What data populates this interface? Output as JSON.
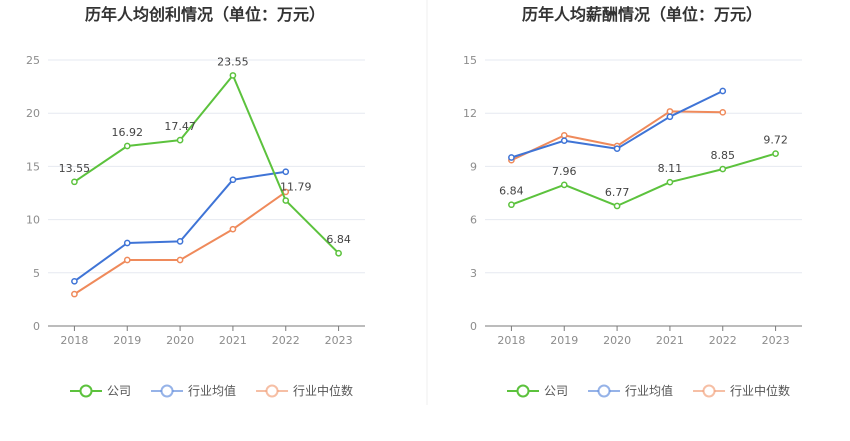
{
  "chart_data": [
    {
      "type": "line",
      "title": "历年人均创利情况（单位：万元）",
      "categories": [
        "2018",
        "2019",
        "2020",
        "2021",
        "2022",
        "2023"
      ],
      "ylim": [
        0,
        25
      ],
      "yticks": [
        0,
        5,
        10,
        15,
        20,
        25
      ],
      "grid": true,
      "legend_position": "bottom",
      "series": [
        {
          "name": "公司",
          "color": "#5cc23d",
          "values": [
            13.55,
            16.92,
            17.47,
            23.55,
            11.79,
            6.84
          ],
          "labels": [
            "13.55",
            "16.92",
            "17.47",
            "23.55",
            "11.79",
            "6.84"
          ]
        },
        {
          "name": "行业均值",
          "color": "#3f74d6",
          "values": [
            4.2,
            7.8,
            7.95,
            13.75,
            14.5,
            null
          ]
        },
        {
          "name": "行业中位数",
          "color": "#ef8a5b",
          "values": [
            3.0,
            6.2,
            6.2,
            9.1,
            12.6,
            null
          ]
        }
      ]
    },
    {
      "type": "line",
      "title": "历年人均薪酬情况（单位：万元）",
      "categories": [
        "2018",
        "2019",
        "2020",
        "2021",
        "2022",
        "2023"
      ],
      "ylim": [
        0,
        15
      ],
      "yticks": [
        0,
        3,
        6,
        9,
        12,
        15
      ],
      "grid": true,
      "legend_position": "bottom",
      "series": [
        {
          "name": "公司",
          "color": "#5cc23d",
          "values": [
            6.84,
            7.96,
            6.77,
            8.11,
            8.85,
            9.72
          ],
          "labels": [
            "6.84",
            "7.96",
            "6.77",
            "8.11",
            "8.85",
            "9.72"
          ]
        },
        {
          "name": "行业均值",
          "color": "#3f74d6",
          "values": [
            9.5,
            10.45,
            10.0,
            11.8,
            13.25,
            null
          ]
        },
        {
          "name": "行业中位数",
          "color": "#ef8a5b",
          "values": [
            9.35,
            10.75,
            10.15,
            12.1,
            12.05,
            null
          ]
        }
      ]
    }
  ]
}
